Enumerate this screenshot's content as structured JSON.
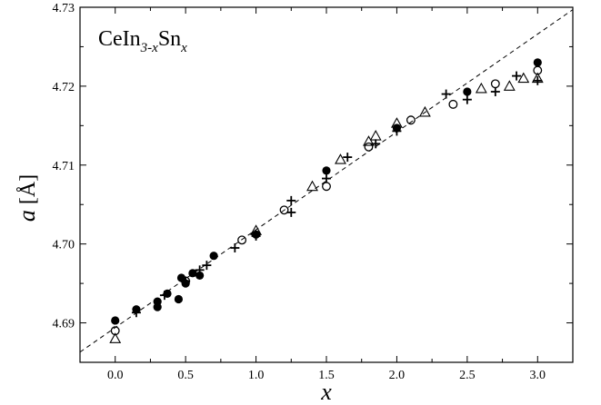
{
  "chart_data": {
    "type": "scatter",
    "annotation": {
      "base": "CeIn",
      "sub1": "3-x",
      "mid": "Sn",
      "sub2": "x"
    },
    "xlabel": "x",
    "ylabel_italic": "a",
    "ylabel_unit": "[Å]",
    "xlim": [
      -0.25,
      3.25
    ],
    "ylim": [
      4.685,
      4.73
    ],
    "xticks": [
      0.0,
      0.5,
      1.0,
      1.5,
      2.0,
      2.5,
      3.0
    ],
    "xtick_labels": [
      "0.0",
      "0.5",
      "1.0",
      "1.5",
      "2.0",
      "2.5",
      "3.0"
    ],
    "yticks": [
      4.69,
      4.7,
      4.71,
      4.72,
      4.73
    ],
    "ytick_labels": [
      "4.69",
      "4.70",
      "4.71",
      "4.72",
      "4.73"
    ],
    "fit_line": {
      "style": "dashed",
      "x": [
        -0.25,
        3.25
      ],
      "y": [
        4.6863,
        4.7297
      ]
    },
    "series": [
      {
        "marker": "filled-circle",
        "points": [
          [
            0.0,
            4.6903
          ],
          [
            0.15,
            4.6917
          ],
          [
            0.3,
            4.692
          ],
          [
            0.3,
            4.6927
          ],
          [
            0.37,
            4.6937
          ],
          [
            0.45,
            4.693
          ],
          [
            0.47,
            4.6957
          ],
          [
            0.5,
            4.695
          ],
          [
            0.55,
            4.6963
          ],
          [
            0.6,
            4.696
          ],
          [
            0.7,
            4.6985
          ],
          [
            1.0,
            4.7012
          ],
          [
            1.5,
            4.7093
          ],
          [
            2.0,
            4.7147
          ],
          [
            2.5,
            4.7193
          ],
          [
            3.0,
            4.723
          ]
        ]
      },
      {
        "marker": "open-circle",
        "points": [
          [
            0.0,
            4.689
          ],
          [
            0.5,
            4.6953
          ],
          [
            0.9,
            4.7005
          ],
          [
            1.2,
            4.7043
          ],
          [
            1.5,
            4.7073
          ],
          [
            1.8,
            4.7123
          ],
          [
            2.1,
            4.7157
          ],
          [
            2.4,
            4.7177
          ],
          [
            2.7,
            4.7203
          ],
          [
            3.0,
            4.722
          ]
        ]
      },
      {
        "marker": "open-triangle",
        "points": [
          [
            0.0,
            4.688
          ],
          [
            1.0,
            4.7017
          ],
          [
            1.4,
            4.7073
          ],
          [
            1.6,
            4.7107
          ],
          [
            1.8,
            4.713
          ],
          [
            1.85,
            4.7137
          ],
          [
            2.0,
            4.7153
          ],
          [
            2.2,
            4.7167
          ],
          [
            2.6,
            4.7197
          ],
          [
            2.8,
            4.72
          ],
          [
            2.9,
            4.721
          ],
          [
            3.0,
            4.721
          ]
        ]
      },
      {
        "marker": "plus",
        "points": [
          [
            0.15,
            4.6913
          ],
          [
            0.35,
            4.6935
          ],
          [
            0.5,
            4.6953
          ],
          [
            0.6,
            4.6967
          ],
          [
            0.65,
            4.6973
          ],
          [
            0.85,
            4.6995
          ],
          [
            1.0,
            4.701
          ],
          [
            1.25,
            4.704
          ],
          [
            1.25,
            4.7055
          ],
          [
            1.5,
            4.7083
          ],
          [
            1.65,
            4.711
          ],
          [
            1.85,
            4.7127
          ],
          [
            2.0,
            4.7143
          ],
          [
            2.35,
            4.719
          ],
          [
            2.5,
            4.7183
          ],
          [
            2.7,
            4.7193
          ],
          [
            2.85,
            4.7213
          ],
          [
            3.0,
            4.7207
          ]
        ]
      }
    ]
  }
}
